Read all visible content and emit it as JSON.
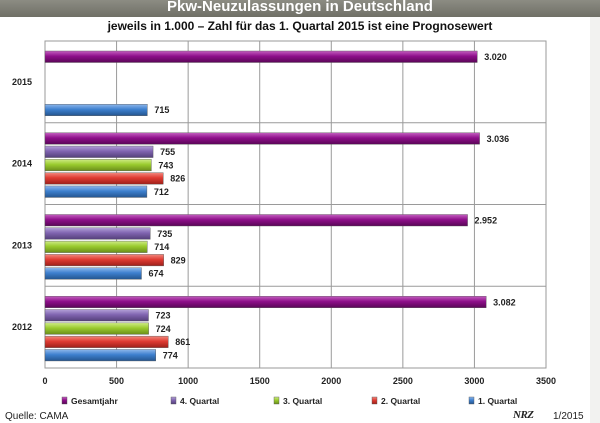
{
  "header": {
    "title": "Pkw-Neuzulassungen in Deutschland",
    "subtitle": "jeweils in 1.000 – Zahl für das 1. Quartal 2015 ist eine Prognosewert"
  },
  "footer": {
    "source": "Quelle: CAMA",
    "brand": "NRZ",
    "date": "1/2015"
  },
  "colors": {
    "Gesamtjahr": "#8e0f8a",
    "4. Quartal": "#8064b0",
    "3. Quartal": "#9acb2e",
    "2. Quartal": "#df3b32",
    "1. Quartal": "#3e80cf"
  },
  "chart_data": {
    "type": "bar",
    "orientation": "horizontal",
    "title": "Pkw-Neuzulassungen in Deutschland",
    "subtitle": "jeweils in 1.000 – Zahl für das 1. Quartal 2015 ist eine Prognosewert",
    "categories": [
      "2015",
      "2014",
      "2013",
      "2012"
    ],
    "series": [
      {
        "name": "Gesamtjahr",
        "values": [
          3020,
          3036,
          2952,
          3082
        ],
        "labels": [
          "3.020",
          "3.036",
          "2.952",
          "3.082"
        ]
      },
      {
        "name": "4. Quartal",
        "values": [
          null,
          755,
          735,
          723
        ],
        "labels": [
          "",
          "755",
          "735",
          "723"
        ]
      },
      {
        "name": "3. Quartal",
        "values": [
          null,
          743,
          714,
          724
        ],
        "labels": [
          "",
          "743",
          "714",
          "724"
        ]
      },
      {
        "name": "2. Quartal",
        "values": [
          null,
          826,
          829,
          861
        ],
        "labels": [
          "",
          "826",
          "829",
          "861"
        ]
      },
      {
        "name": "1. Quartal",
        "values": [
          715,
          712,
          674,
          774
        ],
        "labels": [
          "715",
          "712",
          "674",
          "774"
        ]
      }
    ],
    "xlim": [
      0,
      3500
    ],
    "xticks": [
      "0",
      "500",
      "1000",
      "1500",
      "2000",
      "2500",
      "3000",
      "3500"
    ],
    "grid": true,
    "legend_position": "bottom"
  }
}
